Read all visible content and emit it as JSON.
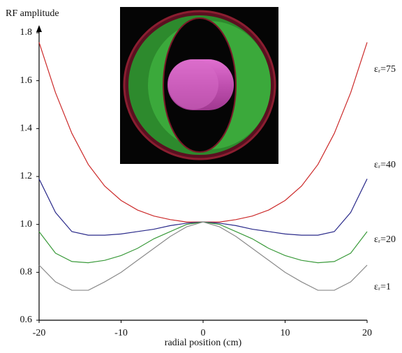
{
  "chart_data": {
    "type": "line",
    "y_label": "RF amplitude",
    "x_label": "radial position (cm)",
    "x": [
      -20,
      -18,
      -16,
      -14,
      -12,
      -10,
      -8,
      -6,
      -4,
      -2,
      0,
      2,
      4,
      6,
      8,
      10,
      12,
      14,
      16,
      18,
      20
    ],
    "series": [
      {
        "name": "εᵣ=75",
        "color": "#cc2a2a",
        "values": [
          1.76,
          1.55,
          1.38,
          1.25,
          1.16,
          1.1,
          1.06,
          1.035,
          1.02,
          1.01,
          1.01,
          1.01,
          1.02,
          1.035,
          1.06,
          1.1,
          1.16,
          1.25,
          1.38,
          1.55,
          1.76
        ]
      },
      {
        "name": "εᵣ=40",
        "color": "#2a2a8a",
        "values": [
          1.19,
          1.05,
          0.97,
          0.955,
          0.955,
          0.96,
          0.97,
          0.98,
          0.995,
          1.005,
          1.01,
          1.005,
          0.995,
          0.98,
          0.97,
          0.96,
          0.955,
          0.955,
          0.97,
          1.05,
          1.19
        ]
      },
      {
        "name": "εᵣ=20",
        "color": "#3a9a3a",
        "values": [
          0.97,
          0.88,
          0.845,
          0.84,
          0.85,
          0.87,
          0.9,
          0.94,
          0.97,
          1.0,
          1.01,
          1.0,
          0.97,
          0.94,
          0.9,
          0.87,
          0.85,
          0.84,
          0.845,
          0.88,
          0.97
        ]
      },
      {
        "name": "εᵣ=1",
        "color": "#8a8a8a",
        "values": [
          0.83,
          0.76,
          0.725,
          0.725,
          0.76,
          0.8,
          0.85,
          0.9,
          0.95,
          0.99,
          1.01,
          0.99,
          0.95,
          0.9,
          0.85,
          0.8,
          0.76,
          0.725,
          0.725,
          0.76,
          0.83
        ]
      }
    ],
    "xlim": [
      -20,
      20
    ],
    "xticks": [
      -20,
      -10,
      0,
      10,
      20
    ],
    "ylim": [
      0.6,
      1.8
    ],
    "yticks": [
      0.6,
      0.8,
      {
        "value": 1,
        "label": "1.0"
      },
      1.2,
      1.4,
      1.6,
      1.8
    ]
  }
}
